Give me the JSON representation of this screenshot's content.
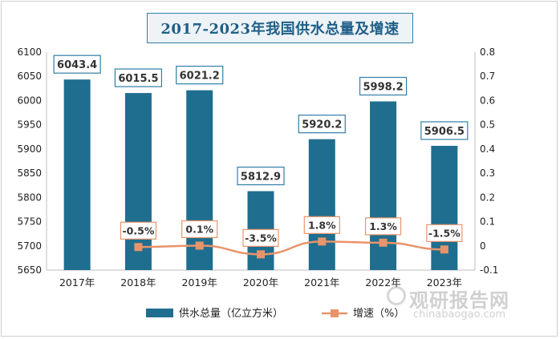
{
  "chart_data": {
    "type": "bar+line",
    "title": "2017-2023年我国供水总量及增速",
    "categories": [
      "2017年",
      "2018年",
      "2019年",
      "2020年",
      "2021年",
      "2022年",
      "2023年"
    ],
    "series": [
      {
        "name": "供水总量（亿立方米）",
        "type": "bar",
        "axis": "left",
        "values": [
          6043.4,
          6015.5,
          6021.2,
          5812.9,
          5920.2,
          5998.2,
          5906.5
        ],
        "labels": [
          "6043.4",
          "6015.5",
          "6021.2",
          "5812.9",
          "5920.2",
          "5998.2",
          "5906.5"
        ],
        "color": "#1f6e8f"
      },
      {
        "name": "增速（%）",
        "type": "line",
        "axis": "right",
        "values": [
          null,
          -0.005,
          0.001,
          -0.035,
          0.018,
          0.013,
          -0.015
        ],
        "labels": [
          "",
          "-0.5%",
          "0.1%",
          "-3.5%",
          "1.8%",
          "1.3%",
          "-1.5%"
        ],
        "color": "#e8946a"
      }
    ],
    "y_left": {
      "min": 5650,
      "max": 6100,
      "step": 50,
      "ticks": [
        "5650",
        "5700",
        "5750",
        "5800",
        "5850",
        "5900",
        "5950",
        "6000",
        "6050",
        "6100"
      ]
    },
    "y_right": {
      "min": -0.1,
      "max": 0.8,
      "step": 0.1,
      "ticks": [
        "-0.1",
        "0",
        "0.1",
        "0.2",
        "0.3",
        "0.4",
        "0.5",
        "0.6",
        "0.7",
        "0.8"
      ]
    },
    "legend": "bottom",
    "grid": false
  },
  "watermark": {
    "cn": "观研报告网",
    "en": "chinabaogao.com"
  }
}
